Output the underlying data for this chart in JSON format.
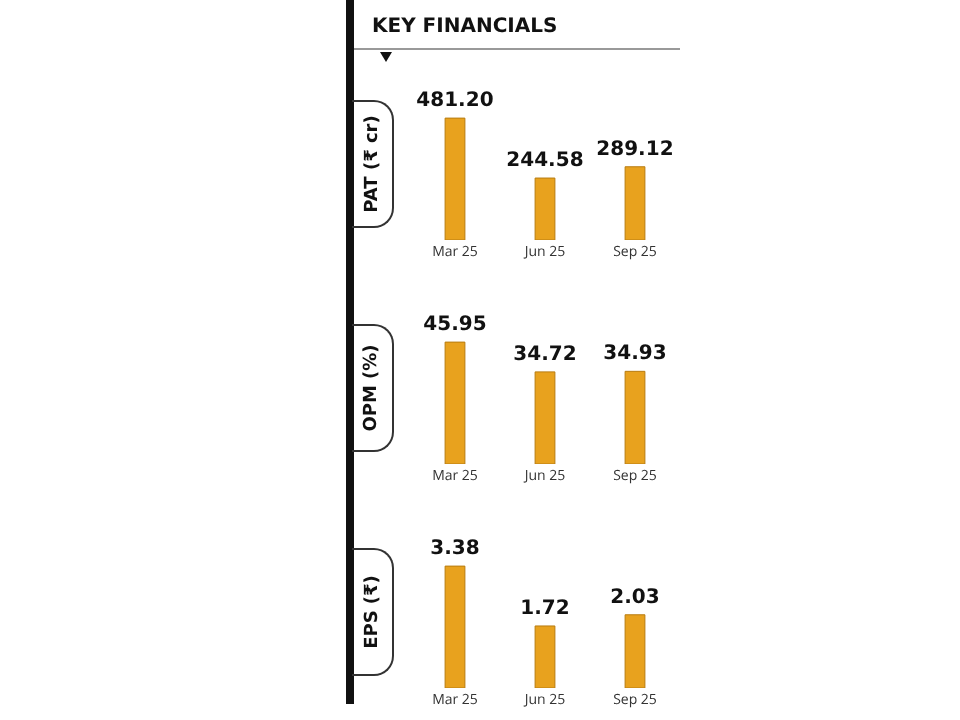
{
  "chart_data": [
    {
      "type": "bar",
      "title": "KEY FINANCIALS",
      "ylabel": "PAT (₹ cr)",
      "categories": [
        "Mar 25",
        "Jun 25",
        "Sep 25"
      ],
      "values": [
        481.2,
        244.58,
        289.12
      ],
      "color": "#e8a21e",
      "value_labels": [
        "481.20",
        "244.58",
        "289.12"
      ]
    },
    {
      "type": "bar",
      "ylabel": "OPM (%)",
      "categories": [
        "Mar 25",
        "Jun 25",
        "Sep 25"
      ],
      "values": [
        45.95,
        34.72,
        34.93
      ],
      "color": "#e8a21e",
      "data_labels": true
    },
    {
      "type": "bar",
      "ylabel": "EPS (₹)",
      "categories": [
        "Mar 25",
        "Jun 25",
        "Sep 25"
      ],
      "values": [
        3.38,
        1.72,
        2.03
      ],
      "color": "#e8a21e",
      "data_labels": true
    }
  ]
}
